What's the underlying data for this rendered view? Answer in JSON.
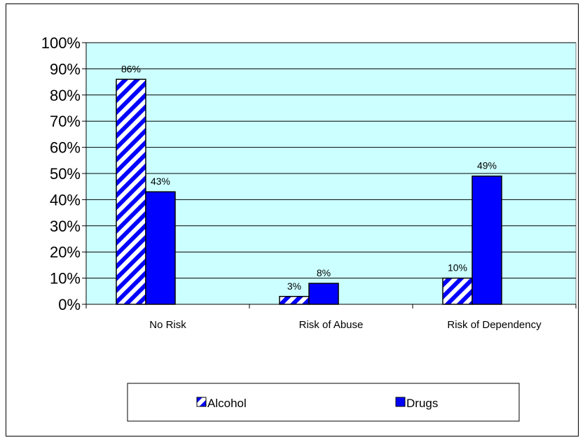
{
  "chart_data": {
    "type": "bar",
    "categories": [
      "No Risk",
      "Risk of Abuse",
      "Risk of Dependency"
    ],
    "series": [
      {
        "name": "Alcohol",
        "values": [
          86,
          3,
          10
        ],
        "labels": [
          "86%",
          "3%",
          "10%"
        ],
        "color": "#0000FF",
        "pattern": "diagonal-hatch"
      },
      {
        "name": "Drugs",
        "values": [
          43,
          8,
          49
        ],
        "labels": [
          "43%",
          "8%",
          "49%"
        ],
        "color": "#0000FF",
        "pattern": "solid"
      }
    ],
    "ylim": [
      0,
      100
    ],
    "yticks": [
      "0%",
      "10%",
      "20%",
      "30%",
      "40%",
      "50%",
      "60%",
      "70%",
      "80%",
      "90%",
      "100%"
    ],
    "grid": true,
    "plot_background": "#CCFFFF",
    "legend_position": "bottom"
  }
}
